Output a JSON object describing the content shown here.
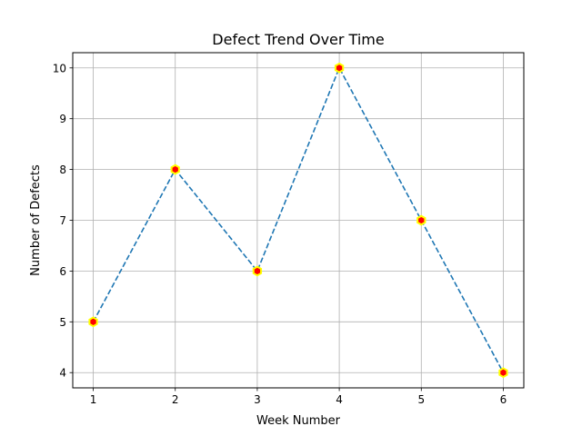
{
  "chart_data": {
    "type": "line",
    "title": "Defect Trend Over Time",
    "xlabel": "Week Number",
    "ylabel": "Number of Defects",
    "x": [
      1,
      2,
      3,
      4,
      5,
      6
    ],
    "series": [
      {
        "values": [
          5,
          8,
          6,
          10,
          7,
          4
        ]
      }
    ],
    "xticks": [
      "1",
      "2",
      "3",
      "4",
      "5",
      "6"
    ],
    "yticks": [
      "4",
      "5",
      "6",
      "7",
      "8",
      "9",
      "10"
    ],
    "xlim": [
      0.75,
      6.25
    ],
    "ylim": [
      3.7,
      10.3
    ],
    "grid": true,
    "line_style": "dashed",
    "marker": "hexagon",
    "colors": {
      "line": "#1f77b4",
      "marker_fill": "#ff0000",
      "marker_edge": "#ffff00",
      "grid": "#b0b0b0",
      "axes": "#000000"
    }
  }
}
